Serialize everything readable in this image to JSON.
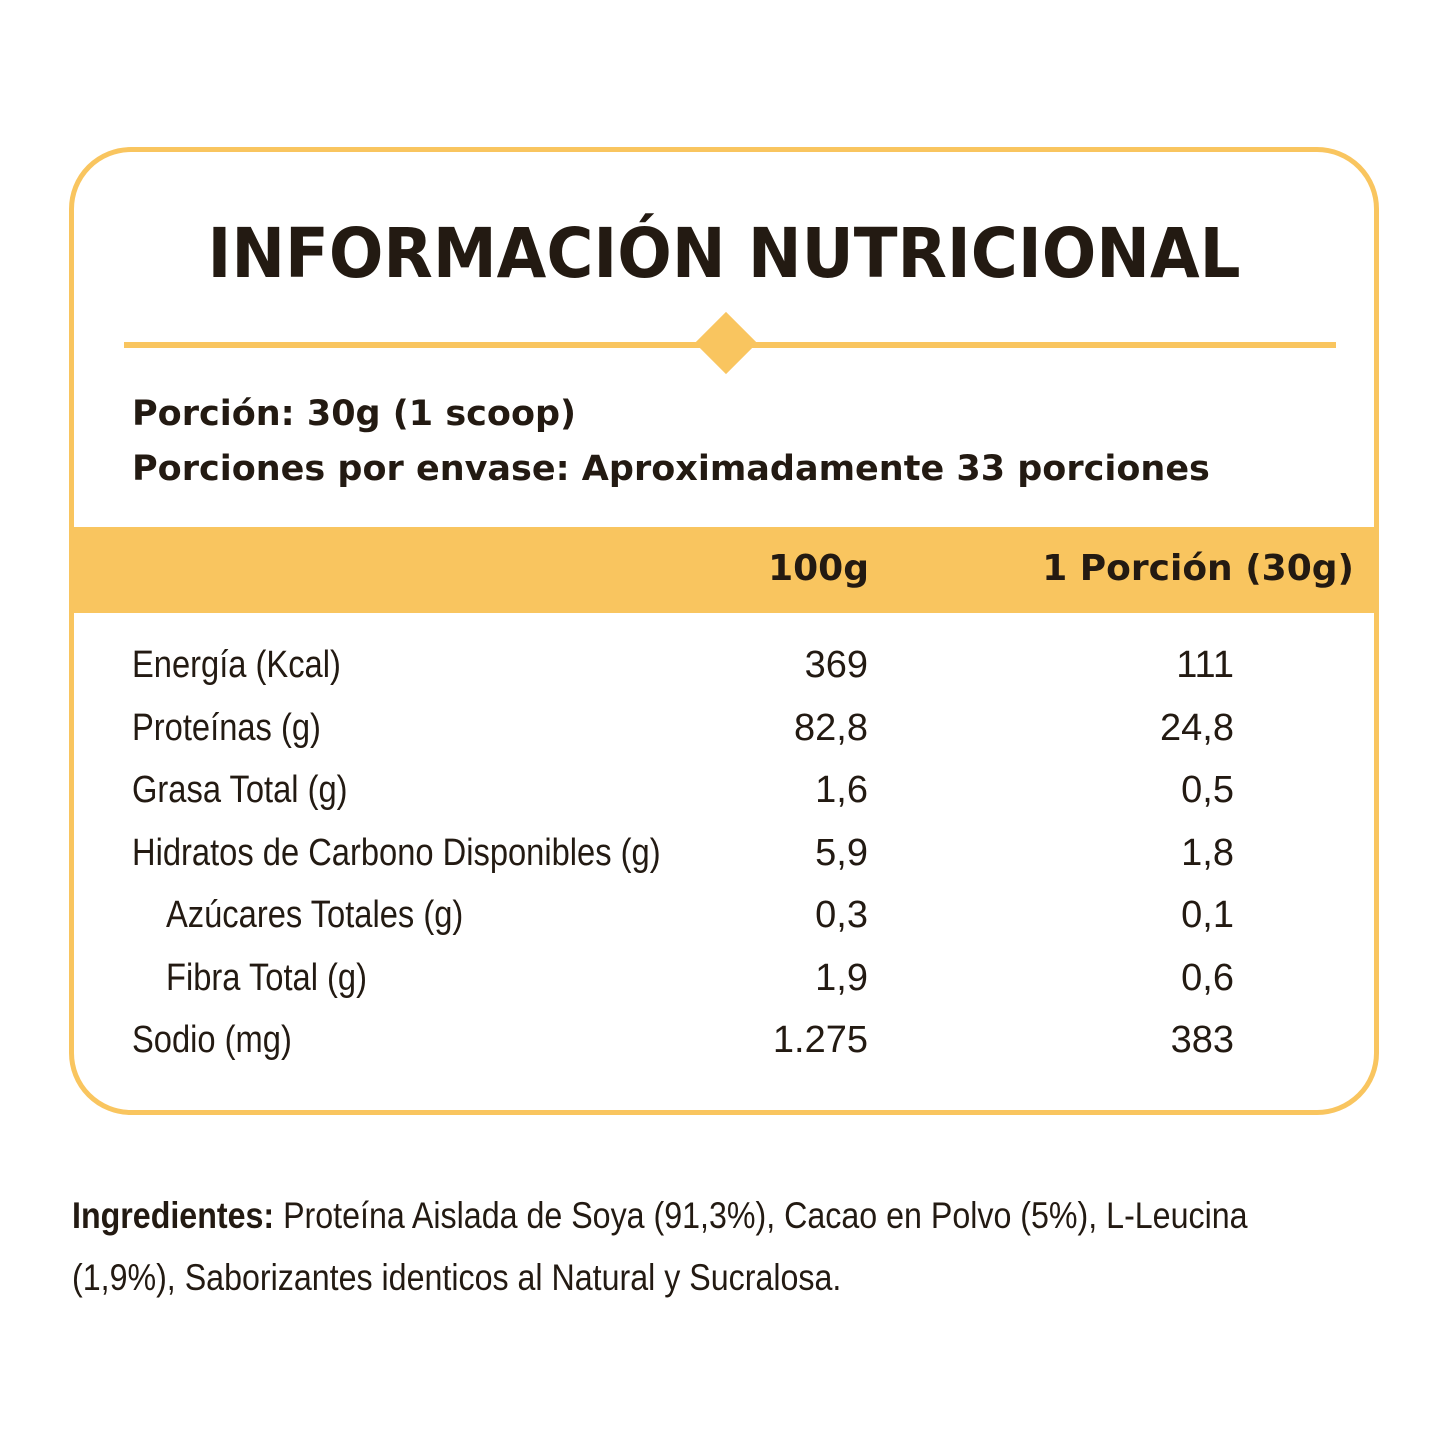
{
  "title": "INFORMACIÓN NUTRICIONAL",
  "serving": {
    "portion": "Porción: 30g (1 scoop)",
    "servings_per_container": "Porciones por envase: Aproximadamente 33 porciones"
  },
  "table": {
    "headers": [
      "100g",
      "1 Porción (30g)"
    ],
    "rows": [
      {
        "label": "Energía (Kcal)",
        "per_100g": "369",
        "per_portion": "111"
      },
      {
        "label": "Proteínas (g)",
        "per_100g": "82,8",
        "per_portion": "24,8"
      },
      {
        "label": "Grasa Total (g)",
        "per_100g": "1,6",
        "per_portion": "0,5"
      },
      {
        "label": "Hidratos de Carbono Disponibles (g)",
        "per_100g": "5,9",
        "per_portion": "1,8"
      },
      {
        "label": "Azúcares Totales (g)",
        "per_100g": "0,3",
        "per_portion": "0,1"
      },
      {
        "label": "Fibra Total (g)",
        "per_100g": "1,9",
        "per_portion": "0,6"
      },
      {
        "label": "Sodio (mg)",
        "per_100g": "1.275",
        "per_portion": "383"
      }
    ]
  },
  "ingredients": {
    "label": "Ingredientes:",
    "line1": " Proteína Aislada de Soya (91,3%), Cacao en Polvo (5%), L-Leucina",
    "line2": "(1,9%), Saborizantes identicos al Natural y Sucralosa."
  },
  "colors": {
    "accent": "#f9c55f",
    "text": "#231a12",
    "background": "#ffffff"
  }
}
